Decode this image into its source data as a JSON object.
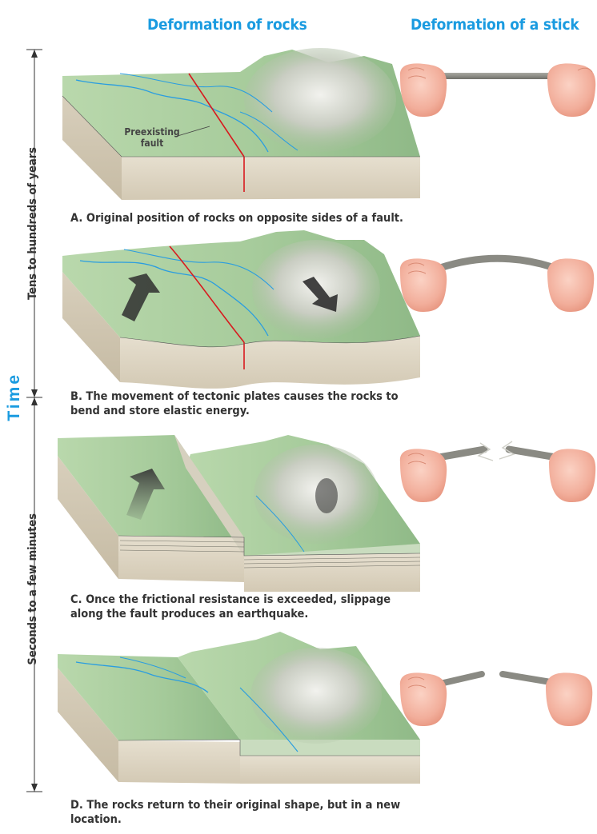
{
  "headers": {
    "rocks": "Deformation of rocks",
    "stick": "Deformation of a stick"
  },
  "time_axis": {
    "label": "Time",
    "top_span": "Tens to hundreds of years",
    "bottom_span": "Seconds to a few minutes"
  },
  "panel_a": {
    "callout": "Preexisting\nfault",
    "caption": "A. Original position of rocks on opposite sides of a fault."
  },
  "panel_b": {
    "caption": "B. The movement of tectonic plates causes the rocks to bend and store elastic energy."
  },
  "panel_c": {
    "caption": "C. Once the frictional resistance is exceeded, slippage along the fault produces an earthquake."
  },
  "panel_d": {
    "caption": "D. The rocks return to their original shape, but in a new location."
  },
  "colors": {
    "accent_blue": "#1a9be0",
    "fault_red": "#d8191e",
    "terrain_green": "#a9cc9f",
    "block_side": "#ddd4c2",
    "skin": "#f2b3a3",
    "river_blue": "#2a9de0"
  }
}
